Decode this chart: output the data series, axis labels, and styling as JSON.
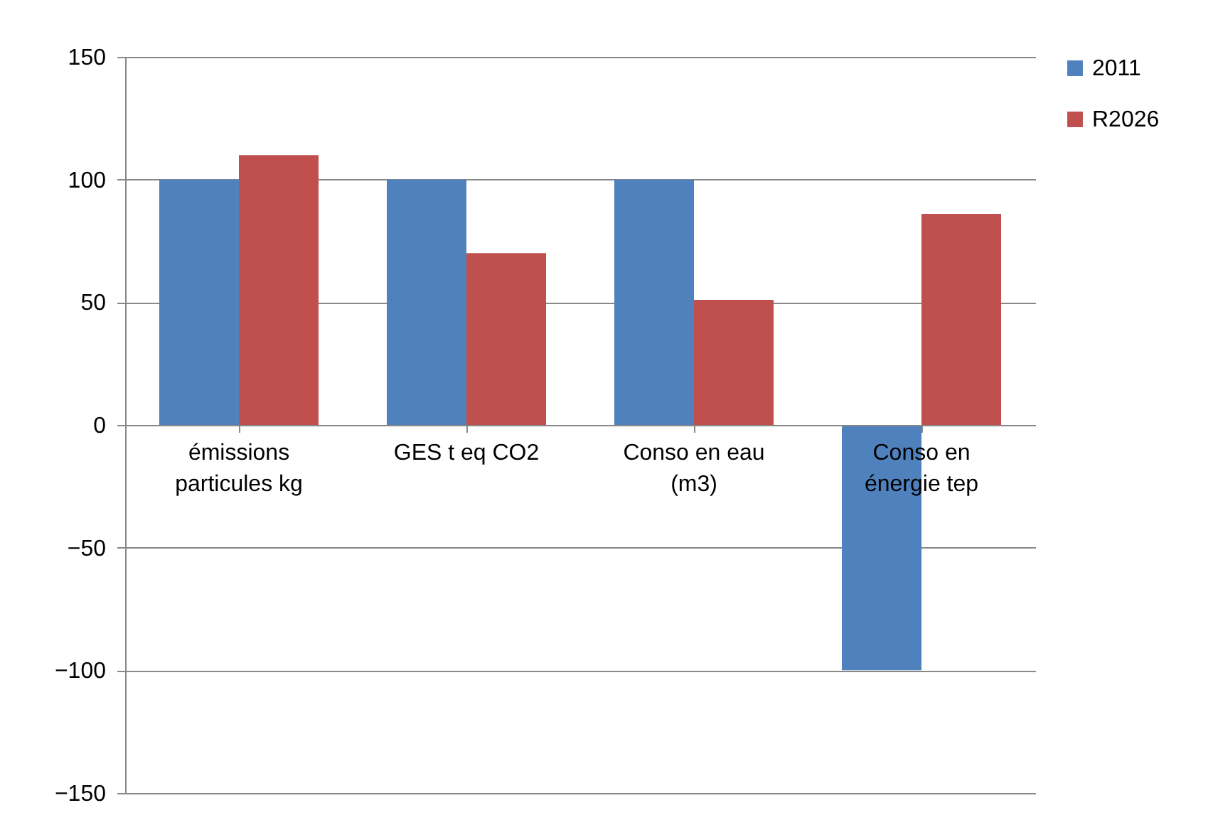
{
  "chart_data": {
    "type": "bar",
    "categories": [
      "émissions particules kg",
      "GES t eq CO2",
      "Conso en eau (m3)",
      "Conso en énergie tep"
    ],
    "series": [
      {
        "name": "2011",
        "color": "#4f81bd",
        "values": [
          100,
          100,
          100,
          -100
        ]
      },
      {
        "name": "R2026",
        "color": "#c0504d",
        "values": [
          110,
          70,
          51,
          86
        ]
      }
    ],
    "ylim": [
      -150,
      150
    ],
    "yticks": [
      -150,
      -100,
      -50,
      0,
      50,
      100,
      150
    ],
    "grid": "y",
    "legend": "right"
  }
}
